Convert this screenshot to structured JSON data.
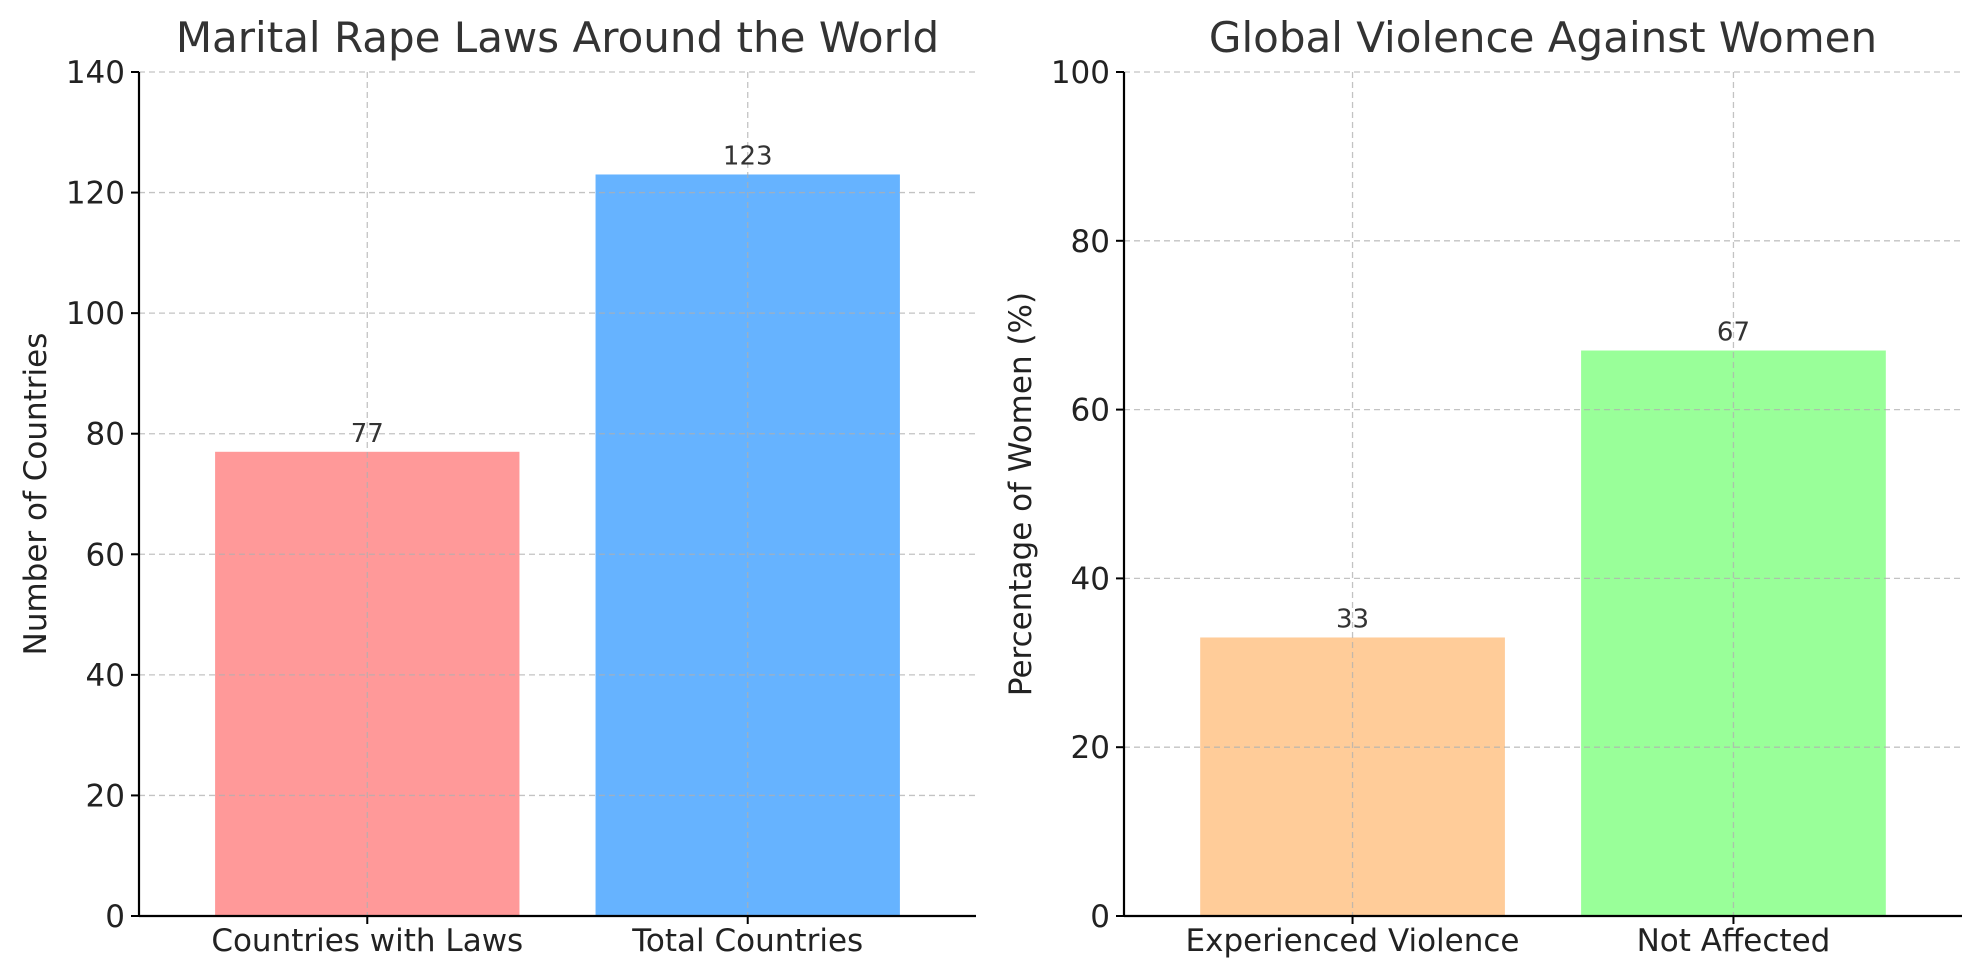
{
  "chart_data": [
    {
      "type": "bar",
      "title": "Marital Rape Laws Around the World",
      "xlabel": "",
      "ylabel": "Number of Countries",
      "categories": [
        "Countries with Laws",
        "Total Countries"
      ],
      "values": [
        77,
        123
      ],
      "data_labels": [
        "77",
        "123"
      ],
      "colors": [
        "#ff9999",
        "#66b3ff"
      ],
      "ylim": [
        0,
        140
      ],
      "yticks": [
        0,
        20,
        40,
        60,
        80,
        100,
        120,
        140
      ],
      "grid": true,
      "legend": "none"
    },
    {
      "type": "bar",
      "title": "Global Violence Against Women",
      "xlabel": "",
      "ylabel": "Percentage of Women (%)",
      "categories": [
        "Experienced Violence",
        "Not Affected"
      ],
      "values": [
        33,
        67
      ],
      "data_labels": [
        "33",
        "67"
      ],
      "colors": [
        "#ffcc99",
        "#99ff99"
      ],
      "ylim": [
        0,
        100
      ],
      "yticks": [
        0,
        20,
        40,
        60,
        80,
        100
      ],
      "grid": true,
      "legend": "none"
    }
  ]
}
